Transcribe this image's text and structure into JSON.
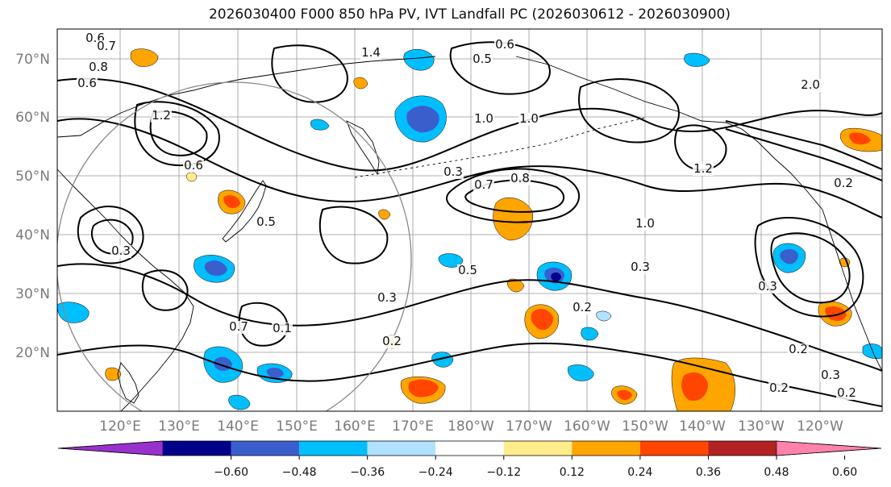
{
  "title": "2026030400 F000 850 hPa PV, IVT Landfall PC (2026030612 - 2026030900)",
  "lat_labels": [
    "70°N",
    "60°N",
    "50°N",
    "40°N",
    "30°N",
    "20°N"
  ],
  "lon_labels": [
    "120°E",
    "130°E",
    "140°E",
    "150°E",
    "160°E",
    "170°E",
    "180°W",
    "170°W",
    "160°W",
    "150°W",
    "140°W",
    "130°W",
    "120°W"
  ],
  "colorbar": {
    "ticks": [
      "−0.60",
      "−0.48",
      "−0.36",
      "−0.24",
      "−0.12",
      "0.12",
      "0.24",
      "0.36",
      "0.48",
      "0.60"
    ],
    "colors": [
      "#9932cc",
      "#00008b",
      "#3a5fcd",
      "#00bfff",
      "#b0e2ff",
      "#ffffff",
      "#ffec8b",
      "#ffa500",
      "#ff4500",
      "#b22222",
      "#ff82ab"
    ]
  },
  "contour_labels": [
    "0.6",
    "0.7",
    "0.8",
    "0.6",
    "1.4",
    "0.5",
    "0.6",
    "1.2",
    "0.6",
    "1.0",
    "1.2",
    "2.0",
    "0.3",
    "0.7",
    "0.8",
    "1.0",
    "0.5",
    "0.3",
    "0.3",
    "0.3",
    "0.2",
    "0.3",
    "0.7",
    "0.2",
    "0.3",
    "0.2",
    "0.2",
    "1.0",
    "0.2",
    "0.1",
    "0.2",
    "0.5"
  ]
}
